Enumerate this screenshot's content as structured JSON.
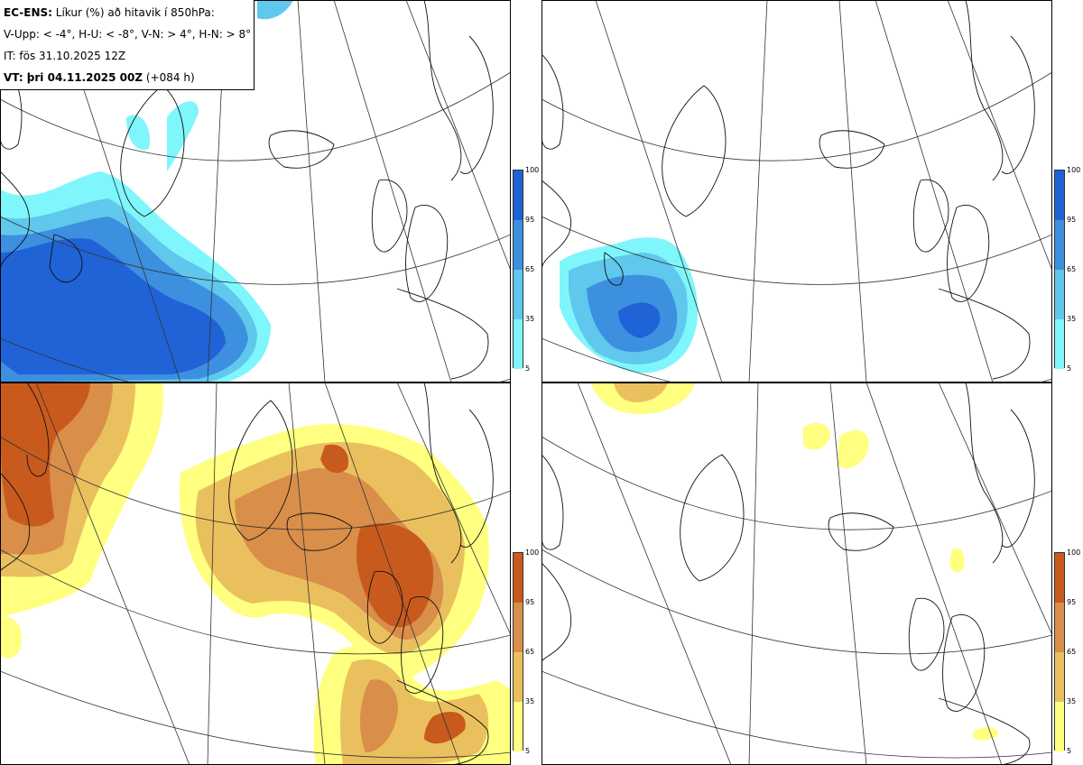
{
  "header": {
    "model": "EC-ENS:",
    "title_rest": "Líkur (%) að hitavik í 850hPa:",
    "legend_line": "V-Upp: < -4°, H-U: < -8°, V-N: > 4°, H-N: > 8°",
    "initial_time": "IT: fös 31.10.2025 12Z",
    "valid_prefix": "VT: þri 04.11.2025 00Z",
    "valid_lead": "(+084 h)"
  },
  "colorbar": {
    "ticks": [
      "100",
      "95",
      "65",
      "35",
      "5"
    ],
    "cold_colors": [
      "#1f63d6",
      "#3d8fe0",
      "#5fc8ec",
      "#7ff6fb"
    ],
    "warm_colors": [
      "#c95a1e",
      "#d98e4a",
      "#eac05e",
      "#ffff80"
    ]
  },
  "panels": [
    {
      "id": "top-left",
      "field": "V-Upp",
      "scheme": "cold"
    },
    {
      "id": "top-right",
      "field": "H-U",
      "scheme": "cold"
    },
    {
      "id": "bottom-left",
      "field": "V-N",
      "scheme": "warm"
    },
    {
      "id": "bottom-right",
      "field": "H-N",
      "scheme": "warm"
    }
  ]
}
